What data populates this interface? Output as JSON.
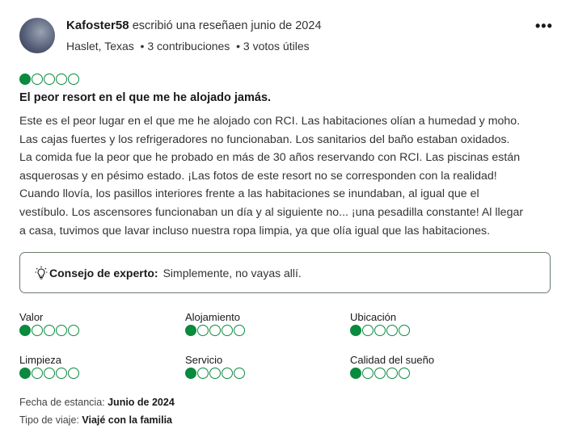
{
  "review": {
    "author": "Kafoster58",
    "action": "escribió una reseñaen junio de 2024",
    "location": "Haslet, Texas",
    "contributions": "3 contribuciones",
    "helpful_votes": "3 votos útiles",
    "more_icon": "ellipsis-icon",
    "rating": 1,
    "rating_max": 5,
    "title": "El peor resort en el que me he alojado jamás.",
    "body_lines": [
      "Este es el peor lugar en el que me he alojado con RCI. Las habitaciones olían a humedad y moho.",
      "Las cajas fuertes y los refrigeradores no funcionaban. Los sanitarios del baño estaban oxidados.",
      "La comida fue la peor que he probado en más de 30 años reservando con RCI. Las piscinas están",
      "asquerosas y en pésimo estado. ¡Las fotos de este resort no se corresponden con la realidad!",
      "Cuando llovía, los pasillos interiores frente a las habitaciones se inundaban, al igual que el",
      "vestíbulo. Los ascensores funcionaban un día y al siguiente no... ¡una pesadilla constante! Al llegar",
      "a casa, tuvimos que lavar incluso nuestra ropa limpia, ya que olía igual que las habitaciones."
    ],
    "tip": {
      "icon": "lightbulb-icon",
      "label": "Consejo de experto:",
      "text": "Simplemente, no vayas allí."
    },
    "subratings": [
      {
        "label": "Valor",
        "rating": 1
      },
      {
        "label": "Alojamiento",
        "rating": 1
      },
      {
        "label": "Ubicación",
        "rating": 1
      },
      {
        "label": "Limpieza",
        "rating": 1
      },
      {
        "label": "Servicio",
        "rating": 1
      },
      {
        "label": "Calidad del sueño",
        "rating": 1
      }
    ],
    "stay_date_label": "Fecha de estancia:",
    "stay_date": "Junio de 2024",
    "trip_type_label": "Tipo de viaje:",
    "trip_type": "Viajé con la familia",
    "accent_color": "#0a8a3e"
  }
}
